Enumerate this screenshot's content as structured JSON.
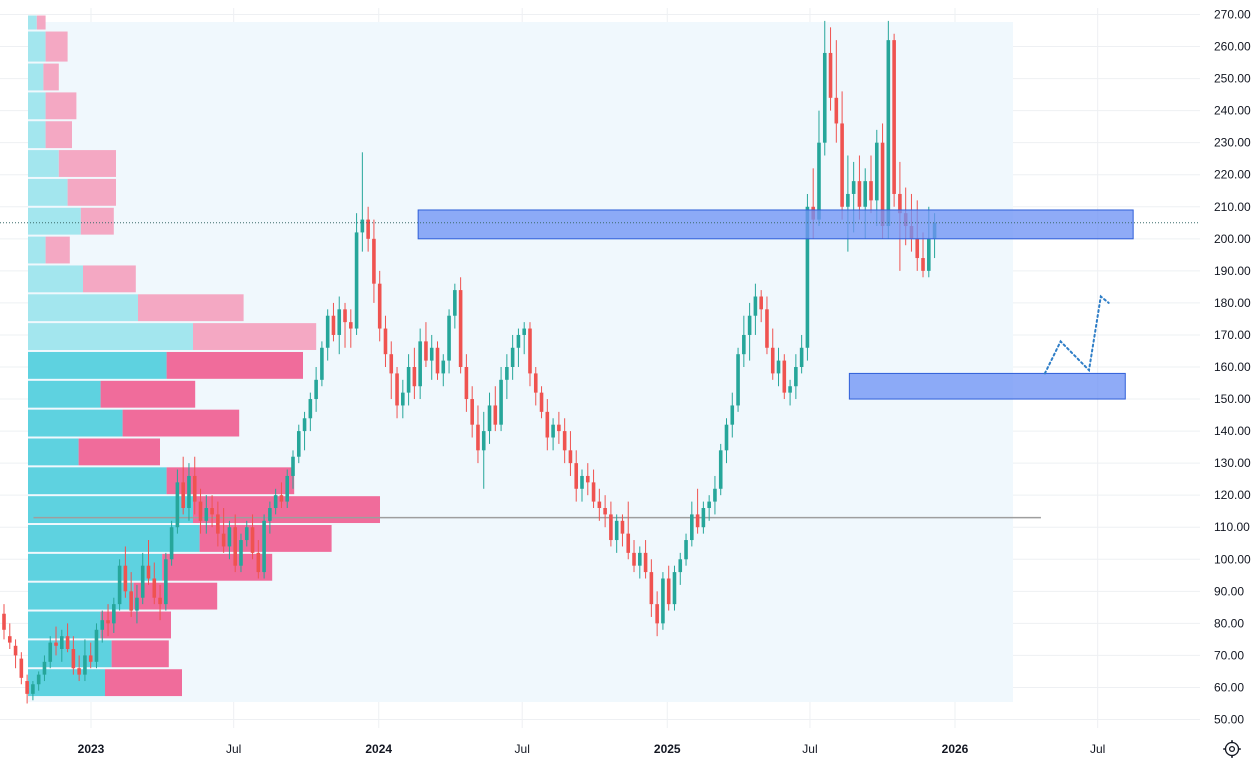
{
  "chart_data": {
    "type": "candlestick",
    "y_axis": {
      "ticks": [
        "270.00",
        "260.00",
        "250.00",
        "240.00",
        "230.00",
        "220.00",
        "210.00",
        "200.00",
        "190.00",
        "180.00",
        "170.00",
        "160.00",
        "150.00",
        "140.00",
        "130.00",
        "120.00",
        "110.00",
        "100.00",
        "90.00",
        "80.00",
        "70.00",
        "60.00",
        "50.00"
      ],
      "range": [
        50,
        270
      ],
      "last_price": 205
    },
    "x_axis": {
      "labels": [
        {
          "text": "2023",
          "date": "2023-01-01",
          "bold": true
        },
        {
          "text": "Jul",
          "date": "2023-07-01",
          "bold": false
        },
        {
          "text": "2024",
          "date": "2024-01-01",
          "bold": true
        },
        {
          "text": "Jul",
          "date": "2024-07-01",
          "bold": false
        },
        {
          "text": "2025",
          "date": "2025-01-01",
          "bold": true
        },
        {
          "text": "Jul",
          "date": "2025-07-01",
          "bold": false
        },
        {
          "text": "2026",
          "date": "2026-01-01",
          "bold": true
        },
        {
          "text": "Jul",
          "date": "2026-07-01",
          "bold": false
        }
      ],
      "range": [
        "2022-10-01",
        "2026-10-01"
      ]
    },
    "candles_ohlc": [
      [
        83,
        86,
        75,
        78
      ],
      [
        76,
        80,
        72,
        74
      ],
      [
        73,
        75,
        66,
        70
      ],
      [
        69,
        71,
        61,
        63
      ],
      [
        62,
        64,
        55,
        58
      ],
      [
        58,
        62,
        56,
        61
      ],
      [
        61,
        65,
        59,
        64
      ],
      [
        64,
        70,
        62,
        68
      ],
      [
        68,
        76,
        66,
        74
      ],
      [
        74,
        79,
        70,
        73
      ],
      [
        72,
        78,
        68,
        76
      ],
      [
        76,
        80,
        71,
        72
      ],
      [
        72,
        76,
        64,
        66
      ],
      [
        66,
        70,
        62,
        64
      ],
      [
        64,
        75,
        62,
        70
      ],
      [
        70,
        74,
        66,
        68
      ],
      [
        68,
        80,
        66,
        78
      ],
      [
        78,
        84,
        74,
        81
      ],
      [
        81,
        86,
        76,
        80
      ],
      [
        80,
        88,
        77,
        86
      ],
      [
        86,
        100,
        84,
        98
      ],
      [
        98,
        104,
        88,
        90
      ],
      [
        90,
        96,
        82,
        84
      ],
      [
        84,
        92,
        80,
        88
      ],
      [
        88,
        102,
        86,
        98
      ],
      [
        98,
        106,
        92,
        94
      ],
      [
        94,
        99,
        86,
        88
      ],
      [
        88,
        92,
        81,
        86
      ],
      [
        86,
        102,
        84,
        100
      ],
      [
        100,
        112,
        98,
        110
      ],
      [
        110,
        128,
        108,
        124
      ],
      [
        124,
        132,
        114,
        116
      ],
      [
        116,
        130,
        112,
        126
      ],
      [
        126,
        132,
        114,
        118
      ],
      [
        118,
        122,
        108,
        112
      ],
      [
        112,
        120,
        108,
        116
      ],
      [
        116,
        120,
        110,
        114
      ],
      [
        114,
        118,
        104,
        108
      ],
      [
        108,
        116,
        102,
        104
      ],
      [
        104,
        112,
        100,
        110
      ],
      [
        110,
        114,
        96,
        98
      ],
      [
        98,
        108,
        96,
        106
      ],
      [
        106,
        112,
        104,
        110
      ],
      [
        110,
        114,
        100,
        102
      ],
      [
        102,
        106,
        94,
        96
      ],
      [
        96,
        114,
        94,
        112
      ],
      [
        112,
        118,
        108,
        116
      ],
      [
        116,
        122,
        114,
        120
      ],
      [
        120,
        124,
        116,
        118
      ],
      [
        118,
        128,
        116,
        126
      ],
      [
        126,
        134,
        122,
        132
      ],
      [
        132,
        142,
        130,
        140
      ],
      [
        140,
        146,
        134,
        144
      ],
      [
        144,
        152,
        140,
        150
      ],
      [
        150,
        160,
        146,
        156
      ],
      [
        156,
        168,
        154,
        166
      ],
      [
        166,
        178,
        162,
        176
      ],
      [
        176,
        180,
        168,
        170
      ],
      [
        170,
        182,
        164,
        178
      ],
      [
        178,
        180,
        166,
        174
      ],
      [
        174,
        178,
        166,
        172
      ],
      [
        172,
        208,
        170,
        202
      ],
      [
        202,
        227,
        196,
        206
      ],
      [
        206,
        210,
        196,
        200
      ],
      [
        200,
        206,
        180,
        186
      ],
      [
        186,
        190,
        168,
        172
      ],
      [
        172,
        176,
        160,
        164
      ],
      [
        164,
        168,
        150,
        158
      ],
      [
        158,
        160,
        144,
        148
      ],
      [
        148,
        156,
        144,
        152
      ],
      [
        152,
        164,
        148,
        160
      ],
      [
        160,
        166,
        150,
        154
      ],
      [
        154,
        172,
        150,
        168
      ],
      [
        168,
        174,
        160,
        162
      ],
      [
        162,
        170,
        156,
        166
      ],
      [
        166,
        168,
        156,
        158
      ],
      [
        158,
        164,
        154,
        162
      ],
      [
        162,
        178,
        158,
        176
      ],
      [
        176,
        186,
        172,
        184
      ],
      [
        184,
        188,
        158,
        160
      ],
      [
        160,
        164,
        146,
        150
      ],
      [
        150,
        154,
        138,
        142
      ],
      [
        142,
        148,
        130,
        134
      ],
      [
        134,
        146,
        122,
        140
      ],
      [
        140,
        152,
        136,
        148
      ],
      [
        148,
        154,
        140,
        142
      ],
      [
        142,
        160,
        140,
        156
      ],
      [
        156,
        164,
        150,
        160
      ],
      [
        160,
        170,
        156,
        166
      ],
      [
        166,
        172,
        160,
        170
      ],
      [
        170,
        174,
        164,
        172
      ],
      [
        172,
        174,
        154,
        158
      ],
      [
        158,
        160,
        148,
        152
      ],
      [
        152,
        154,
        144,
        146
      ],
      [
        146,
        150,
        134,
        138
      ],
      [
        138,
        144,
        134,
        142
      ],
      [
        142,
        146,
        136,
        140
      ],
      [
        140,
        144,
        130,
        134
      ],
      [
        134,
        140,
        126,
        130
      ],
      [
        130,
        134,
        118,
        122
      ],
      [
        122,
        128,
        118,
        126
      ],
      [
        126,
        130,
        120,
        124
      ],
      [
        124,
        128,
        116,
        118
      ],
      [
        118,
        122,
        112,
        116
      ],
      [
        116,
        120,
        110,
        114
      ],
      [
        114,
        118,
        104,
        106
      ],
      [
        106,
        114,
        102,
        112
      ],
      [
        112,
        114,
        104,
        108
      ],
      [
        108,
        118,
        100,
        102
      ],
      [
        102,
        106,
        96,
        98
      ],
      [
        98,
        104,
        94,
        102
      ],
      [
        102,
        106,
        94,
        96
      ],
      [
        96,
        100,
        82,
        86
      ],
      [
        86,
        90,
        76,
        80
      ],
      [
        80,
        96,
        78,
        94
      ],
      [
        94,
        98,
        84,
        86
      ],
      [
        86,
        98,
        84,
        96
      ],
      [
        96,
        102,
        92,
        100
      ],
      [
        100,
        108,
        98,
        106
      ],
      [
        106,
        118,
        104,
        114
      ],
      [
        114,
        122,
        108,
        110
      ],
      [
        110,
        118,
        108,
        116
      ],
      [
        116,
        120,
        112,
        118
      ],
      [
        118,
        126,
        114,
        122
      ],
      [
        122,
        136,
        120,
        134
      ],
      [
        134,
        144,
        130,
        142
      ],
      [
        142,
        152,
        138,
        148
      ],
      [
        148,
        166,
        146,
        164
      ],
      [
        164,
        176,
        160,
        170
      ],
      [
        170,
        180,
        162,
        176
      ],
      [
        176,
        186,
        170,
        182
      ],
      [
        182,
        184,
        174,
        178
      ],
      [
        178,
        182,
        164,
        166
      ],
      [
        166,
        172,
        156,
        158
      ],
      [
        158,
        166,
        154,
        162
      ],
      [
        162,
        164,
        150,
        152
      ],
      [
        152,
        156,
        148,
        154
      ],
      [
        154,
        164,
        150,
        160
      ],
      [
        160,
        170,
        158,
        166
      ],
      [
        166,
        214,
        162,
        210
      ],
      [
        210,
        222,
        200,
        206
      ],
      [
        206,
        240,
        204,
        230
      ],
      [
        230,
        268,
        226,
        258
      ],
      [
        258,
        266,
        240,
        244
      ],
      [
        244,
        262,
        230,
        236
      ],
      [
        236,
        246,
        206,
        210
      ],
      [
        210,
        226,
        196,
        214
      ],
      [
        214,
        224,
        202,
        218
      ],
      [
        218,
        226,
        206,
        210
      ],
      [
        210,
        222,
        200,
        218
      ],
      [
        218,
        226,
        208,
        212
      ],
      [
        212,
        234,
        204,
        230
      ],
      [
        230,
        236,
        200,
        204
      ],
      [
        204,
        268,
        200,
        262
      ],
      [
        262,
        264,
        210,
        214
      ],
      [
        214,
        224,
        190,
        208
      ],
      [
        208,
        216,
        198,
        204
      ],
      [
        204,
        214,
        196,
        200
      ],
      [
        200,
        212,
        190,
        194
      ],
      [
        194,
        202,
        188,
        190
      ],
      [
        190,
        210,
        188,
        200
      ],
      [
        200,
        208,
        194,
        205
      ]
    ],
    "volume_profile_rows": [
      {
        "low": 265,
        "high": 270,
        "up": 4,
        "down": 4
      },
      {
        "low": 255,
        "high": 265,
        "up": 8,
        "down": 10
      },
      {
        "low": 246,
        "high": 255,
        "up": 7,
        "down": 7
      },
      {
        "low": 237,
        "high": 246,
        "up": 8,
        "down": 14
      },
      {
        "low": 228,
        "high": 237,
        "up": 8,
        "down": 12
      },
      {
        "low": 219,
        "high": 228,
        "up": 14,
        "down": 26
      },
      {
        "low": 210,
        "high": 219,
        "up": 18,
        "down": 22
      },
      {
        "low": 201,
        "high": 210,
        "up": 24,
        "down": 15
      },
      {
        "low": 192,
        "high": 201,
        "up": 8,
        "down": 11
      },
      {
        "low": 183,
        "high": 192,
        "up": 25,
        "down": 24
      },
      {
        "low": 174,
        "high": 183,
        "up": 50,
        "down": 48
      },
      {
        "low": 165,
        "high": 174,
        "up": 75,
        "down": 56
      },
      {
        "low": 156,
        "high": 165,
        "up": 63,
        "down": 62
      },
      {
        "low": 147,
        "high": 156,
        "up": 33,
        "down": 43
      },
      {
        "low": 138,
        "high": 147,
        "up": 43,
        "down": 53
      },
      {
        "low": 129,
        "high": 138,
        "up": 23,
        "down": 37
      },
      {
        "low": 120,
        "high": 129,
        "up": 63,
        "down": 58
      },
      {
        "low": 111,
        "high": 120,
        "up": 75,
        "down": 85
      },
      {
        "low": 102,
        "high": 111,
        "up": 78,
        "down": 60
      },
      {
        "low": 93,
        "high": 102,
        "up": 61,
        "down": 50
      },
      {
        "low": 84,
        "high": 93,
        "up": 48,
        "down": 38
      },
      {
        "low": 75,
        "high": 84,
        "up": 33,
        "down": 32
      },
      {
        "low": 66,
        "high": 75,
        "up": 38,
        "down": 26
      },
      {
        "low": 57,
        "high": 66,
        "up": 35,
        "down": 35
      }
    ],
    "zones": [
      {
        "name": "upper-zone",
        "low": 200,
        "high": 209,
        "start": "2024-02-20",
        "end": "2026-08-15"
      },
      {
        "name": "lower-zone",
        "low": 150,
        "high": 158,
        "start": "2025-08-20",
        "end": "2026-08-05"
      }
    ],
    "poc_line": {
      "price": 113,
      "start": "2022-10-20",
      "end": "2026-04-20"
    },
    "projection_path": [
      {
        "date": "2026-04-25",
        "price": 158
      },
      {
        "date": "2026-05-15",
        "price": 168
      },
      {
        "date": "2026-06-20",
        "price": 159
      },
      {
        "date": "2026-07-05",
        "price": 182
      },
      {
        "date": "2026-07-15",
        "price": 180
      }
    ],
    "colors": {
      "up": "#26a69a",
      "down": "#ef5350",
      "vp_up": "#5ed2e0",
      "vp_up_light": "#a3e6ee",
      "vp_down": "#f06c9b",
      "vp_down_light": "#f4a8c3",
      "zone_fill": "#6f93f5",
      "zone_stroke": "#2f5fd8",
      "range_bg": "#f0f8fd",
      "grid": "#eef0f3",
      "poc": "#9e9e9e",
      "projection": "#2f7ec7"
    }
  },
  "ui": {
    "settings_icon": "gear-icon"
  }
}
